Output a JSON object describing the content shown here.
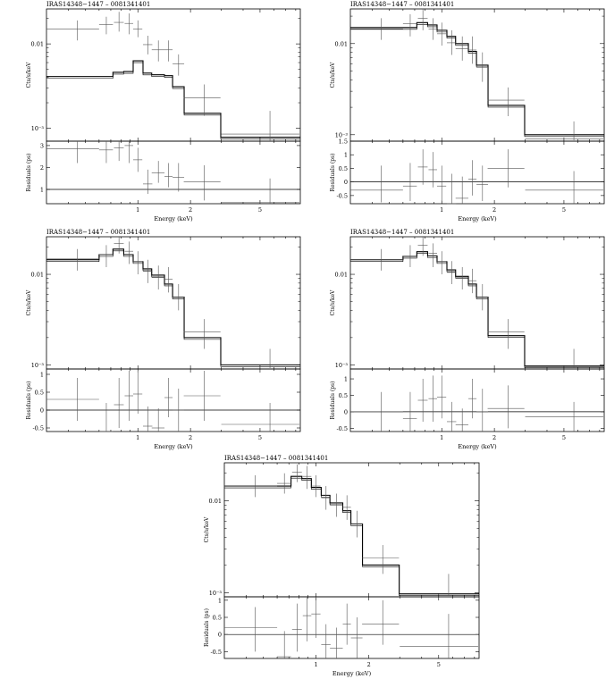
{
  "chart_data": [
    {
      "type": "line",
      "title": "IRAS14348−1447 – 0081341401",
      "ylabel": "Cts/s/keV",
      "xlabel": "Energy (keV)",
      "resid_label": "Residuals (ps)",
      "xlim": [
        0.3,
        8.5
      ],
      "ylim": [
        0.0007,
        0.026
      ],
      "log_y": true,
      "x_ticks": [
        "1",
        "2",
        "5"
      ],
      "y_ticks": [
        "10⁻³",
        "0.01"
      ],
      "resid_ylim": [
        0.35,
        3.2
      ],
      "resid_ticks": [
        "3",
        "2",
        "1"
      ],
      "resid_zero": 1,
      "model": {
        "edges": [
          0.3,
          0.6,
          0.72,
          0.83,
          0.94,
          1.07,
          1.2,
          1.42,
          1.58,
          1.84,
          2.98,
          8.5
        ],
        "values": [
          0.0041,
          0.0041,
          0.0046,
          0.0047,
          0.0063,
          0.0045,
          0.0043,
          0.0042,
          0.0031,
          0.0015,
          0.00078
        ]
      },
      "data": {
        "x": [
          0.45,
          0.66,
          0.78,
          0.89,
          1.0,
          1.14,
          1.31,
          1.5,
          1.71,
          2.4,
          5.7
        ],
        "xerr": [
          0.15,
          0.06,
          0.05,
          0.05,
          0.06,
          0.07,
          0.11,
          0.08,
          0.13,
          0.57,
          2.7
        ],
        "y": [
          0.015,
          0.017,
          0.018,
          0.0175,
          0.015,
          0.0098,
          0.0085,
          0.0085,
          0.0058,
          0.0023,
          0.00085
        ],
        "ylo": [
          0.011,
          0.013,
          0.014,
          0.013,
          0.012,
          0.0075,
          0.0062,
          0.0062,
          0.0042,
          0.0014,
          0.0007
        ],
        "yhi": [
          0.019,
          0.021,
          0.024,
          0.023,
          0.019,
          0.0125,
          0.011,
          0.011,
          0.0075,
          0.0033,
          0.0016
        ]
      },
      "resid": {
        "y": [
          2.85,
          2.8,
          2.9,
          3.0,
          2.35,
          1.25,
          1.75,
          1.6,
          1.55,
          1.35,
          0.4
        ],
        "ylo": [
          2.2,
          2.2,
          2.3,
          2.2,
          1.8,
          0.8,
          1.3,
          1.1,
          0.9,
          0.5,
          0.35
        ],
        "yhi": [
          3.2,
          3.2,
          3.2,
          3.2,
          2.9,
          1.9,
          2.3,
          2.2,
          2.2,
          2.1,
          1.5
        ]
      }
    },
    {
      "type": "line",
      "title": "IRAS14348−1447 – 0081341401",
      "ylabel": "Cts/s/keV",
      "xlabel": "Energy (keV)",
      "resid_label": "Residuals (ps)",
      "xlim": [
        0.3,
        8.5
      ],
      "ylim": [
        0.00085,
        0.024
      ],
      "log_y": true,
      "x_ticks": [
        "1",
        "2",
        "5"
      ],
      "y_ticks": [
        "10⁻³",
        "0.01"
      ],
      "resid_ylim": [
        -0.8,
        1.5
      ],
      "resid_ticks": [
        "1.5",
        "1",
        "0.5",
        "0",
        "-0.5"
      ],
      "resid_zero": 0,
      "model": {
        "edges": [
          0.3,
          0.6,
          0.72,
          0.83,
          0.94,
          1.07,
          1.2,
          1.42,
          1.58,
          1.84,
          2.98,
          8.5
        ],
        "values": [
          0.015,
          0.015,
          0.017,
          0.016,
          0.014,
          0.012,
          0.01,
          0.0082,
          0.0058,
          0.0021,
          0.001
        ]
      },
      "data": {
        "x": [
          0.45,
          0.66,
          0.78,
          0.89,
          1.0,
          1.14,
          1.31,
          1.5,
          1.71,
          2.4,
          5.7
        ],
        "xerr": [
          0.15,
          0.06,
          0.05,
          0.05,
          0.06,
          0.07,
          0.11,
          0.08,
          0.13,
          0.57,
          2.7
        ],
        "y": [
          0.0145,
          0.0165,
          0.019,
          0.0145,
          0.0128,
          0.0102,
          0.0088,
          0.0085,
          0.0055,
          0.0024,
          0.0009
        ],
        "ylo": [
          0.011,
          0.012,
          0.014,
          0.011,
          0.0095,
          0.0075,
          0.0065,
          0.006,
          0.0038,
          0.0016,
          0.00087
        ],
        "yhi": [
          0.019,
          0.021,
          0.024,
          0.019,
          0.017,
          0.014,
          0.012,
          0.012,
          0.008,
          0.0033,
          0.0014
        ]
      },
      "resid": {
        "y": [
          -0.3,
          -0.15,
          0.55,
          0.45,
          -0.15,
          -0.8,
          -0.6,
          0.1,
          -0.1,
          0.5,
          -0.3
        ],
        "ylo": [
          -0.75,
          -0.7,
          -0.1,
          -0.2,
          -0.7,
          -0.8,
          -0.8,
          -0.5,
          -0.7,
          -0.2,
          -0.8
        ],
        "yhi": [
          0.6,
          0.7,
          1.2,
          1.1,
          0.6,
          0.3,
          0.2,
          0.8,
          0.6,
          1.2,
          0.4
        ]
      }
    },
    {
      "type": "line",
      "title": "IRAS14348−1447 – 0081341401",
      "ylabel": "Cts/s/keV",
      "xlabel": "Energy (keV)",
      "resid_label": "Residuals (ps)",
      "xlim": [
        0.3,
        8.5
      ],
      "ylim": [
        0.0009,
        0.026
      ],
      "log_y": true,
      "x_ticks": [
        "1",
        "2",
        "5"
      ],
      "y_ticks": [
        "10⁻³",
        "0.01"
      ],
      "resid_ylim": [
        -0.6,
        1.15
      ],
      "resid_ticks": [
        "1",
        "0.5",
        "0",
        "-0.5"
      ],
      "resid_zero": 0,
      "model": {
        "edges": [
          0.3,
          0.6,
          0.72,
          0.83,
          0.94,
          1.07,
          1.2,
          1.42,
          1.58,
          1.84,
          2.98,
          8.5
        ],
        "values": [
          0.0145,
          0.0165,
          0.019,
          0.0165,
          0.0138,
          0.0115,
          0.0098,
          0.0078,
          0.0056,
          0.002,
          0.001
        ]
      },
      "data": {
        "x": [
          0.45,
          0.66,
          0.78,
          0.89,
          1.0,
          1.14,
          1.31,
          1.5,
          1.71,
          2.4,
          5.7
        ],
        "xerr": [
          0.15,
          0.06,
          0.05,
          0.05,
          0.06,
          0.07,
          0.11,
          0.08,
          0.13,
          0.57,
          2.7
        ],
        "y": [
          0.0148,
          0.0165,
          0.022,
          0.018,
          0.0138,
          0.0108,
          0.0092,
          0.0088,
          0.0056,
          0.0023,
          0.00095
        ],
        "ylo": [
          0.011,
          0.012,
          0.017,
          0.013,
          0.01,
          0.008,
          0.0068,
          0.0063,
          0.004,
          0.0015,
          0.00092
        ],
        "yhi": [
          0.019,
          0.021,
          0.026,
          0.023,
          0.018,
          0.0145,
          0.0125,
          0.012,
          0.0078,
          0.0032,
          0.0015
        ]
      },
      "resid": {
        "y": [
          0.3,
          -0.6,
          0.15,
          0.4,
          0.45,
          -0.45,
          -0.5,
          0.35,
          0.0,
          0.4,
          -0.4
        ],
        "ylo": [
          -0.3,
          -0.6,
          -0.5,
          -0.3,
          -0.1,
          -0.6,
          -0.6,
          -0.2,
          -0.6,
          -0.3,
          -0.6
        ],
        "yhi": [
          0.9,
          0.2,
          0.9,
          1.1,
          1.1,
          0.1,
          0.05,
          0.9,
          0.6,
          1.1,
          0.2
        ]
      }
    },
    {
      "type": "line",
      "title": "IRAS14348−1447 – 0081341401",
      "ylabel": "Cts/s/keV",
      "xlabel": "Energy (keV)",
      "resid_label": "Residuals (ps)",
      "xlim": [
        0.3,
        8.5
      ],
      "ylim": [
        0.0009,
        0.026
      ],
      "log_y": true,
      "x_ticks": [
        "1",
        "2",
        "5"
      ],
      "y_ticks": [
        "10⁻³",
        "0.01"
      ],
      "resid_ylim": [
        -0.6,
        1.3
      ],
      "resid_ticks": [
        "1",
        "0.5",
        "0",
        "-0.5"
      ],
      "resid_zero": 0,
      "model": {
        "edges": [
          0.3,
          0.6,
          0.72,
          0.83,
          0.94,
          1.07,
          1.2,
          1.42,
          1.58,
          1.84,
          2.98,
          8.5
        ],
        "values": [
          0.0145,
          0.0158,
          0.0178,
          0.016,
          0.0138,
          0.0112,
          0.0095,
          0.0078,
          0.0056,
          0.0021,
          0.00097
        ]
      },
      "data": {
        "x": [
          0.45,
          0.66,
          0.78,
          0.89,
          1.0,
          1.14,
          1.31,
          1.5,
          1.71,
          2.4,
          5.7
        ],
        "xerr": [
          0.15,
          0.06,
          0.05,
          0.05,
          0.06,
          0.07,
          0.11,
          0.08,
          0.13,
          0.57,
          2.7
        ],
        "y": [
          0.0145,
          0.0158,
          0.021,
          0.017,
          0.0138,
          0.0105,
          0.0092,
          0.0085,
          0.0056,
          0.0023,
          0.00095
        ],
        "ylo": [
          0.011,
          0.012,
          0.016,
          0.012,
          0.01,
          0.0078,
          0.0068,
          0.0062,
          0.004,
          0.0015,
          0.00092
        ],
        "yhi": [
          0.019,
          0.021,
          0.026,
          0.022,
          0.018,
          0.014,
          0.012,
          0.0115,
          0.0078,
          0.0032,
          0.0015
        ]
      },
      "resid": {
        "y": [
          0.0,
          -0.2,
          0.35,
          0.4,
          0.45,
          -0.3,
          -0.4,
          0.4,
          0.0,
          0.1,
          -0.15
        ],
        "ylo": [
          -0.6,
          -0.6,
          -0.3,
          -0.3,
          -0.2,
          -0.6,
          -0.6,
          -0.2,
          -0.6,
          -0.5,
          -0.6
        ],
        "yhi": [
          0.6,
          0.6,
          1.0,
          1.1,
          1.1,
          0.3,
          0.1,
          1.0,
          0.7,
          0.8,
          0.3
        ]
      }
    },
    {
      "type": "line",
      "title": "IRAS14348−1447 – 0081341401",
      "ylabel": "Cts/s/keV",
      "xlabel": "Energy (keV)",
      "resid_label": "Residuals (ps)",
      "xlim": [
        0.3,
        8.5
      ],
      "ylim": [
        0.0009,
        0.026
      ],
      "log_y": true,
      "x_ticks": [
        "1",
        "2",
        "5"
      ],
      "y_ticks": [
        "10⁻³",
        "0.01"
      ],
      "resid_ylim": [
        -0.7,
        1.1
      ],
      "resid_ticks": [
        "1",
        "0.5",
        "0",
        "-0.5"
      ],
      "resid_zero": 0,
      "model": {
        "edges": [
          0.3,
          0.6,
          0.72,
          0.83,
          0.94,
          1.07,
          1.2,
          1.42,
          1.58,
          1.84,
          2.98,
          8.5
        ],
        "values": [
          0.0145,
          0.0145,
          0.0185,
          0.0175,
          0.014,
          0.0115,
          0.0095,
          0.0078,
          0.0056,
          0.002,
          0.00097
        ]
      },
      "data": {
        "x": [
          0.45,
          0.66,
          0.78,
          0.89,
          1.0,
          1.14,
          1.31,
          1.5,
          1.71,
          2.4,
          5.7
        ],
        "xerr": [
          0.15,
          0.06,
          0.05,
          0.05,
          0.06,
          0.07,
          0.11,
          0.08,
          0.13,
          0.57,
          2.7
        ],
        "y": [
          0.0145,
          0.0155,
          0.0205,
          0.0185,
          0.0145,
          0.0108,
          0.009,
          0.0085,
          0.0056,
          0.0024,
          0.00096
        ],
        "ylo": [
          0.011,
          0.012,
          0.016,
          0.0135,
          0.011,
          0.008,
          0.0067,
          0.0062,
          0.004,
          0.0016,
          0.00092
        ],
        "yhi": [
          0.019,
          0.02,
          0.025,
          0.024,
          0.019,
          0.0145,
          0.012,
          0.0115,
          0.0078,
          0.0033,
          0.0016
        ]
      },
      "resid": {
        "y": [
          0.2,
          -0.65,
          0.15,
          0.55,
          0.6,
          -0.3,
          -0.4,
          0.3,
          -0.1,
          0.3,
          -0.35
        ],
        "ylo": [
          -0.5,
          -0.7,
          -0.5,
          -0.2,
          -0.1,
          -0.7,
          -0.7,
          -0.3,
          -0.7,
          -0.3,
          -0.7
        ],
        "yhi": [
          0.8,
          0.1,
          0.9,
          1.1,
          1.1,
          0.3,
          0.2,
          0.9,
          0.5,
          1.0,
          0.6
        ]
      }
    }
  ]
}
